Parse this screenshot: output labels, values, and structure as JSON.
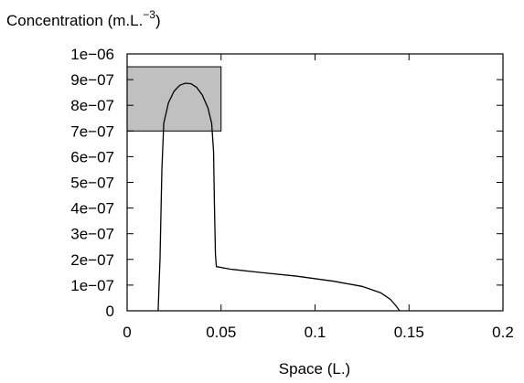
{
  "chart_data": {
    "type": "line",
    "title": "",
    "ylabel": "Concentration (m.L.",
    "ylabel_superscript": "−3",
    "ylabel_close": ")",
    "xlabel": "Space (L.)",
    "xlim": [
      0,
      0.2
    ],
    "ylim": [
      0,
      1e-06
    ],
    "x_ticks": [
      0,
      0.05,
      0.1,
      0.15,
      0.2
    ],
    "x_tick_labels": [
      "0",
      "0.05",
      "0.1",
      "0.15",
      "0.2"
    ],
    "y_ticks": [
      0,
      1e-07,
      2e-07,
      3e-07,
      4e-07,
      5e-07,
      6e-07,
      7e-07,
      8e-07,
      9e-07,
      1e-06
    ],
    "y_tick_labels": [
      "0",
      "1e−07",
      "2e−07",
      "3e−07",
      "4e−07",
      "5e−07",
      "6e−07",
      "7e−07",
      "8e−07",
      "9e−07",
      "1e−06"
    ],
    "grid": false,
    "legend": "none",
    "series": [
      {
        "color": "#000000",
        "points": [
          [
            0.0165,
            0
          ],
          [
            0.0175,
            2e-07
          ],
          [
            0.0185,
            5.5e-07
          ],
          [
            0.0195,
            7.3e-07
          ],
          [
            0.022,
            8.1e-07
          ],
          [
            0.025,
            8.55e-07
          ],
          [
            0.028,
            8.78e-07
          ],
          [
            0.031,
            8.86e-07
          ],
          [
            0.034,
            8.84e-07
          ],
          [
            0.037,
            8.7e-07
          ],
          [
            0.04,
            8.4e-07
          ],
          [
            0.043,
            7.9e-07
          ],
          [
            0.045,
            7.3e-07
          ],
          [
            0.046,
            6.2e-07
          ],
          [
            0.0465,
            4e-07
          ],
          [
            0.047,
            2.2e-07
          ],
          [
            0.0475,
            1.72e-07
          ],
          [
            0.055,
            1.62e-07
          ],
          [
            0.07,
            1.5e-07
          ],
          [
            0.09,
            1.35e-07
          ],
          [
            0.11,
            1.15e-07
          ],
          [
            0.125,
            9.5e-08
          ],
          [
            0.135,
            7e-08
          ],
          [
            0.14,
            4.5e-08
          ],
          [
            0.143,
            2e-08
          ],
          [
            0.145,
            0
          ]
        ]
      }
    ],
    "annotations": [
      {
        "type": "shaded-rectangle",
        "x_range": [
          0,
          0.05
        ],
        "y_range": [
          7e-07,
          9.5e-07
        ],
        "fill": "#c0c0c0",
        "stroke": "#000000"
      }
    ]
  }
}
